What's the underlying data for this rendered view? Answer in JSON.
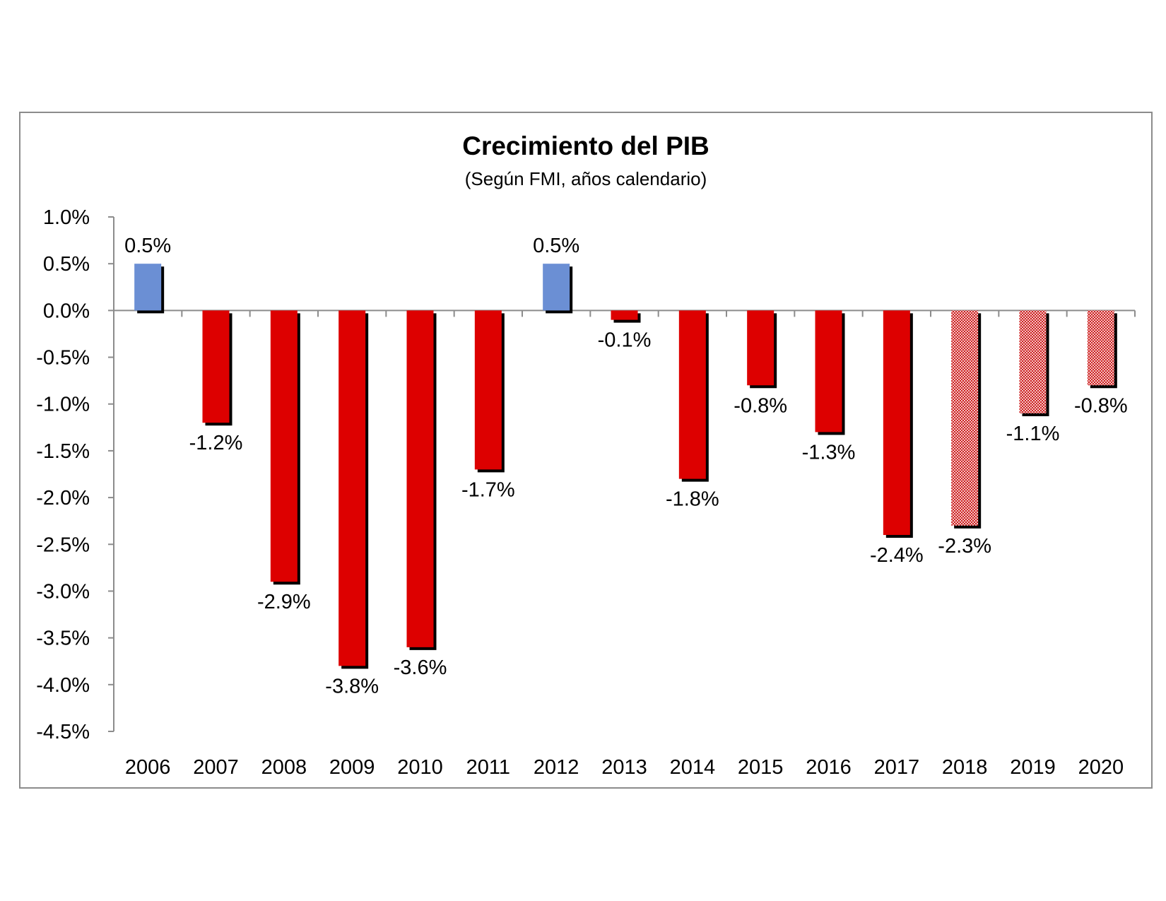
{
  "chart_data": {
    "type": "bar",
    "title": "Crecimiento del PIB",
    "subtitle": "(Según FMI, años calendario)",
    "xlabel": "",
    "ylabel": "",
    "ylim": [
      -4.5,
      1.0
    ],
    "y_ticks": [
      1.0,
      0.5,
      0.0,
      -0.5,
      -1.0,
      -1.5,
      -2.0,
      -2.5,
      -3.0,
      -3.5,
      -4.0,
      -4.5
    ],
    "y_tick_labels": [
      "1.0%",
      "0.5%",
      "0.0%",
      "-0.5%",
      "-1.0%",
      "-1.5%",
      "-2.0%",
      "-2.5%",
      "-3.0%",
      "-3.5%",
      "-4.0%",
      "-4.5%"
    ],
    "grid": false,
    "legend": "none",
    "categories": [
      "2006",
      "2007",
      "2008",
      "2009",
      "2010",
      "2011",
      "2012",
      "2013",
      "2014",
      "2015",
      "2016",
      "2017",
      "2018",
      "2019",
      "2020"
    ],
    "values": [
      0.5,
      -1.2,
      -2.9,
      -3.8,
      -3.6,
      -1.7,
      0.5,
      -0.1,
      -1.8,
      -0.8,
      -1.3,
      -2.4,
      -2.3,
      -1.1,
      -0.8
    ],
    "value_labels": [
      "0.5%",
      "-1.2%",
      "-2.9%",
      "-3.8%",
      "-3.6%",
      "-1.7%",
      "0.5%",
      "-0.1%",
      "-1.8%",
      "-0.8%",
      "-1.3%",
      "-2.4%",
      "-2.3%",
      "-1.1%",
      "-0.8%"
    ],
    "projected_categories": [
      "2018",
      "2019",
      "2020"
    ],
    "colors": {
      "positive": "#6b8fd4",
      "negative": "#dd0000",
      "projected": "#e8a0a0",
      "shadow": "#000000",
      "axis": "#8c8c8c"
    }
  }
}
